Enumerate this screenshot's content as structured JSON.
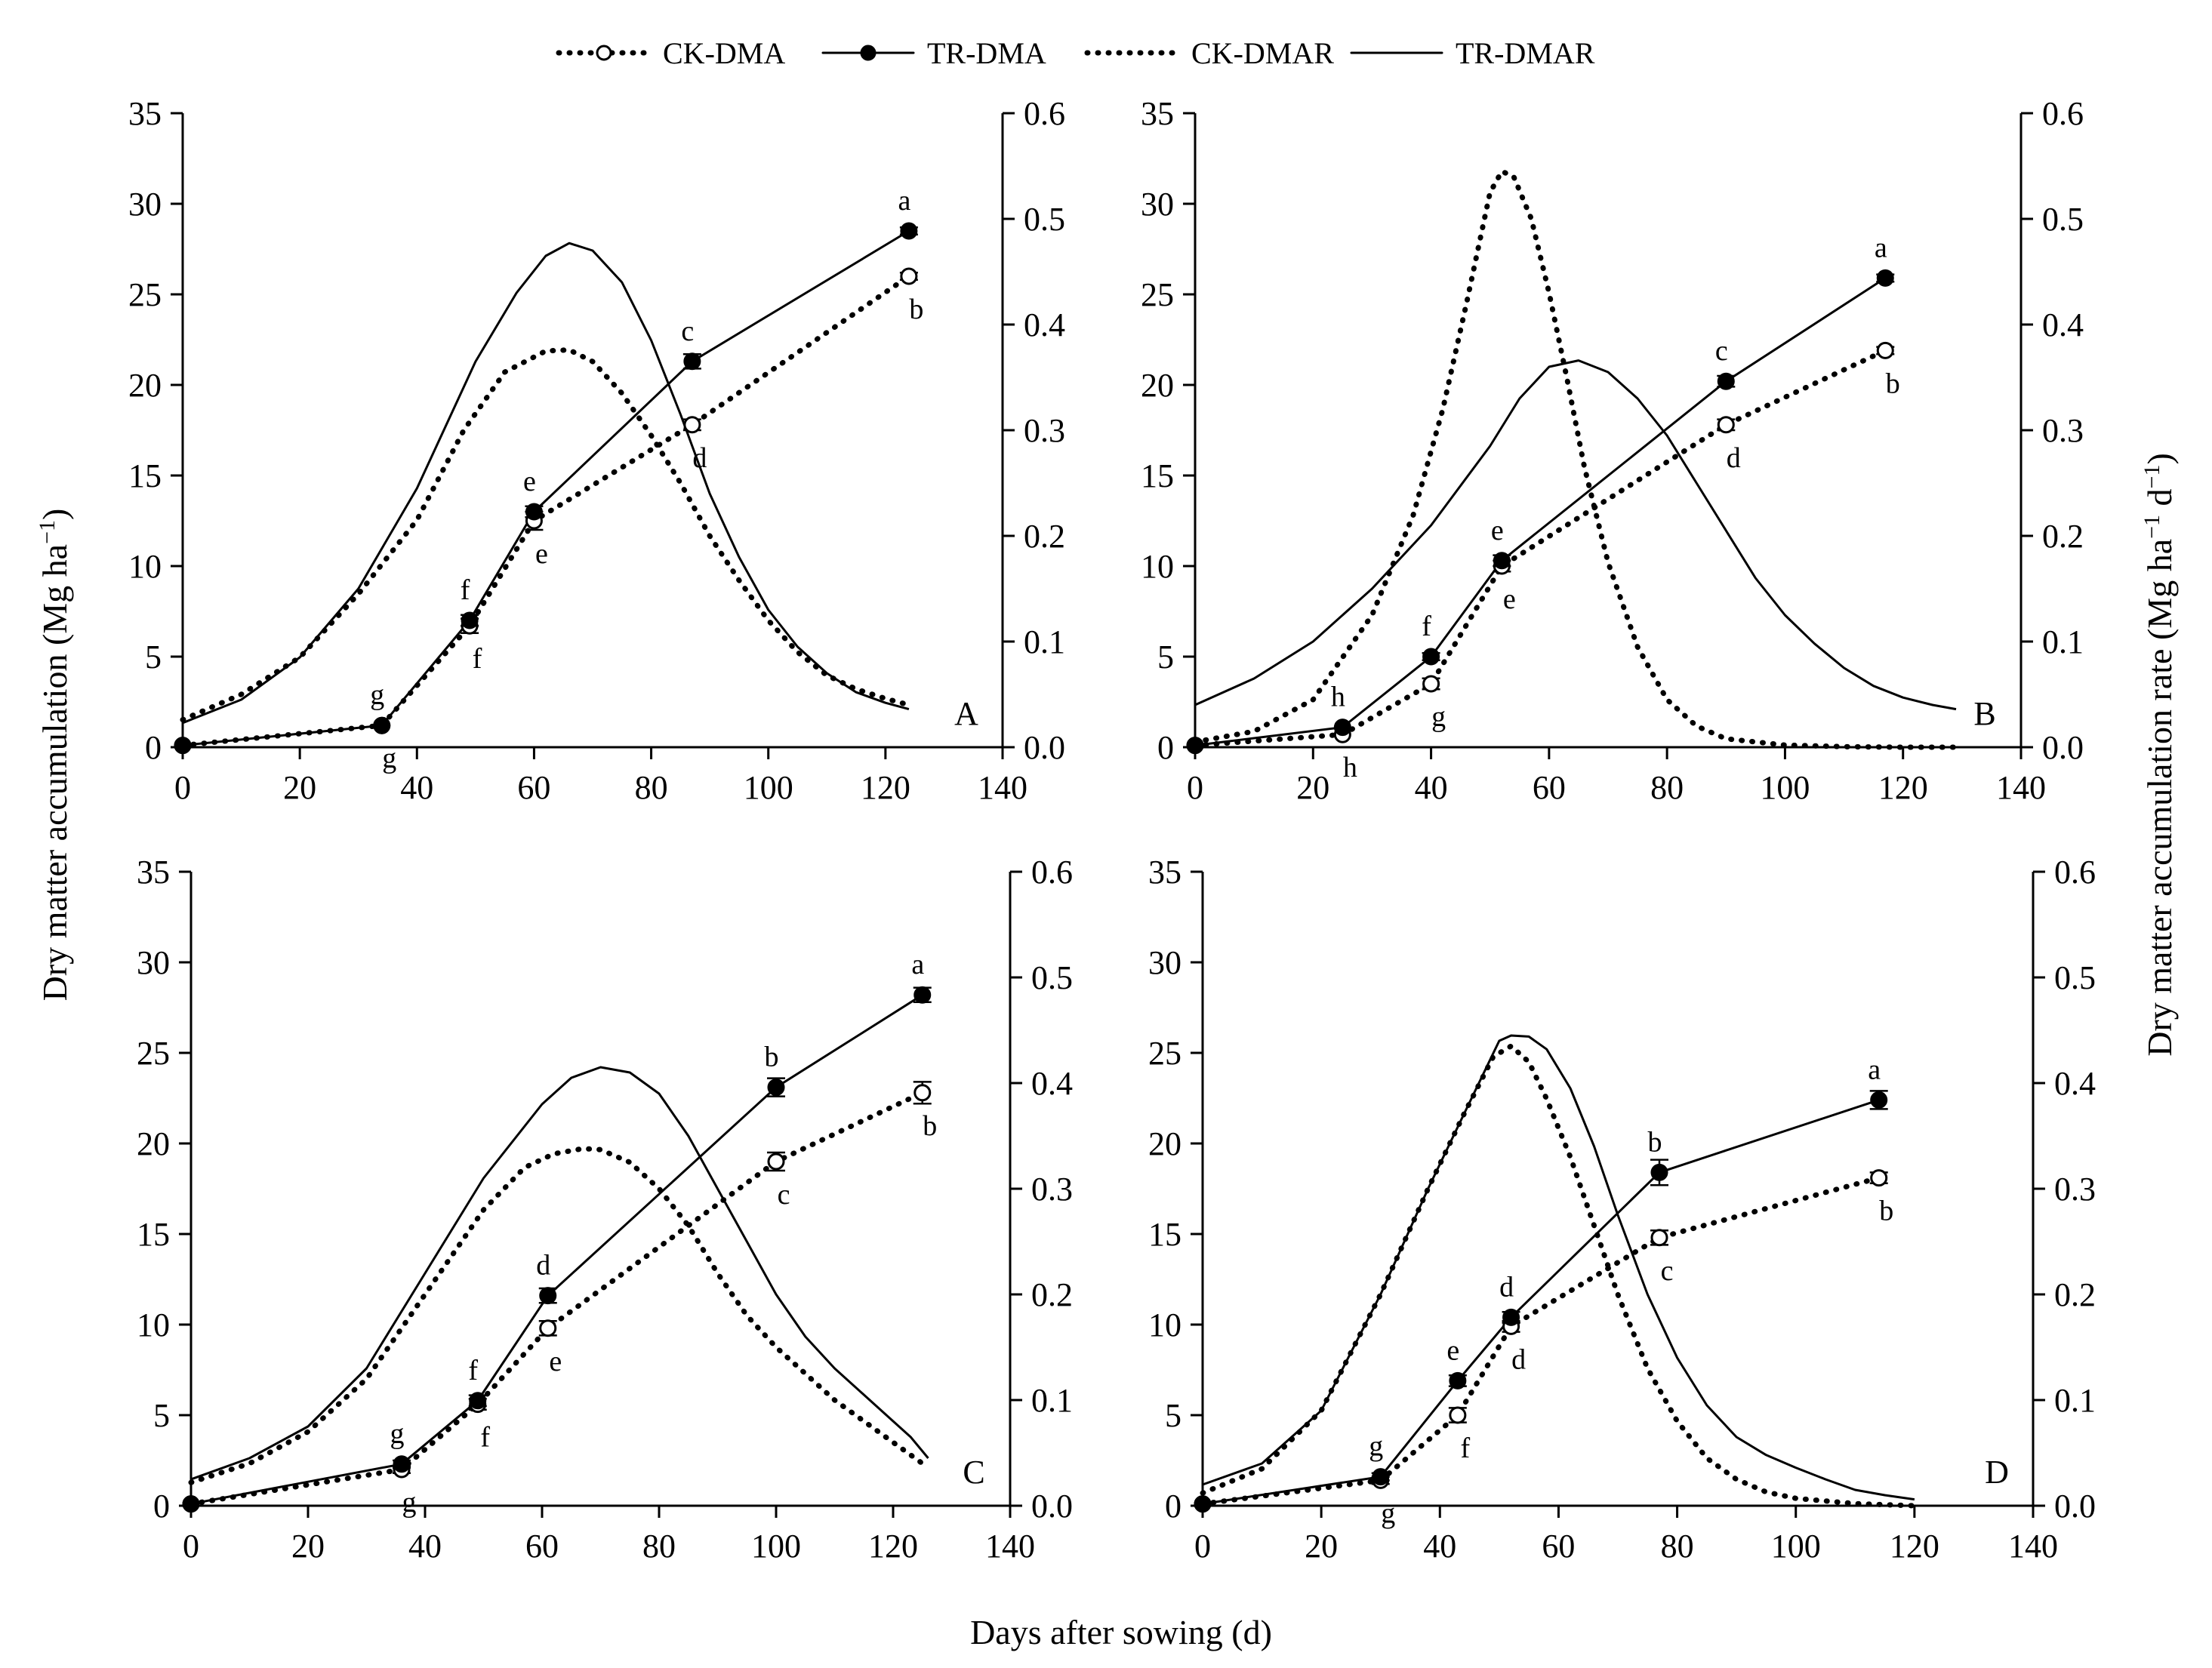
{
  "chart_data": {
    "type": "line",
    "xlabel": "Days after sowing (d)",
    "ylabel_left": "Dry matter accumulation (Mg ha",
    "ylabel_left_sup": "−1",
    "ylabel_left_tail": ")",
    "ylabel_right": "Dry matter accumulation rate (Mg ha",
    "ylabel_right_sup1": "−1",
    "ylabel_right_mid": " d",
    "ylabel_right_sup2": "−1",
    "ylabel_right_tail": ")",
    "legend": [
      {
        "label": "CK-DMA",
        "style": "dotted-open"
      },
      {
        "label": "TR-DMA",
        "style": "solid-filled"
      },
      {
        "label": "CK-DMAR",
        "style": "dotted"
      },
      {
        "label": "TR-DMAR",
        "style": "solid"
      }
    ],
    "xlim": [
      0,
      140
    ],
    "ylim_left": [
      0,
      35
    ],
    "ylim_right": [
      0,
      0.6
    ],
    "xticks": [
      0,
      20,
      40,
      60,
      80,
      100,
      120,
      140
    ],
    "yticks_left": [
      0,
      5,
      10,
      15,
      20,
      25,
      30,
      35
    ],
    "yticks_right": [
      "0.0",
      "0.1",
      "0.2",
      "0.3",
      "0.4",
      "0.5",
      "0.6"
    ],
    "panels": [
      {
        "id": "A",
        "letter": "A",
        "ck_dma": [
          {
            "x": 0,
            "y": 0.1,
            "err": 0.1,
            "label": ""
          },
          {
            "x": 34,
            "y": 1.2,
            "err": 0.15,
            "label": "g"
          },
          {
            "x": 49,
            "y": 6.7,
            "err": 0.4,
            "label": "f"
          },
          {
            "x": 60,
            "y": 12.5,
            "err": 0.5,
            "label": "e"
          },
          {
            "x": 87,
            "y": 17.8,
            "err": 0.3,
            "label": "d"
          },
          {
            "x": 124,
            "y": 26.0,
            "err": 0.2,
            "label": "b"
          }
        ],
        "tr_dma": [
          {
            "x": 0,
            "y": 0.1,
            "err": 0.1,
            "label": ""
          },
          {
            "x": 34,
            "y": 1.2,
            "err": 0.15,
            "label": "g"
          },
          {
            "x": 49,
            "y": 7.0,
            "err": 0.3,
            "label": "f"
          },
          {
            "x": 60,
            "y": 13.0,
            "err": 0.3,
            "label": "e"
          },
          {
            "x": 87,
            "y": 21.3,
            "err": 0.4,
            "label": "c"
          },
          {
            "x": 124,
            "y": 28.5,
            "err": 0.2,
            "label": "a"
          }
        ],
        "ck_dmar": [
          [
            0,
            0.026
          ],
          [
            10,
            0.05
          ],
          [
            20,
            0.085
          ],
          [
            30,
            0.145
          ],
          [
            40,
            0.215
          ],
          [
            48,
            0.3
          ],
          [
            55,
            0.355
          ],
          [
            62,
            0.375
          ],
          [
            66,
            0.376
          ],
          [
            70,
            0.365
          ],
          [
            75,
            0.335
          ],
          [
            80,
            0.295
          ],
          [
            85,
            0.25
          ],
          [
            90,
            0.2
          ],
          [
            95,
            0.158
          ],
          [
            100,
            0.12
          ],
          [
            105,
            0.09
          ],
          [
            110,
            0.068
          ],
          [
            115,
            0.055
          ],
          [
            120,
            0.046
          ],
          [
            124,
            0.04
          ]
        ],
        "tr_dmar": [
          [
            0,
            0.023
          ],
          [
            10,
            0.045
          ],
          [
            20,
            0.085
          ],
          [
            30,
            0.15
          ],
          [
            40,
            0.245
          ],
          [
            50,
            0.365
          ],
          [
            57,
            0.43
          ],
          [
            62,
            0.465
          ],
          [
            66,
            0.477
          ],
          [
            70,
            0.47
          ],
          [
            75,
            0.44
          ],
          [
            80,
            0.385
          ],
          [
            85,
            0.315
          ],
          [
            90,
            0.24
          ],
          [
            95,
            0.18
          ],
          [
            100,
            0.13
          ],
          [
            105,
            0.095
          ],
          [
            110,
            0.07
          ],
          [
            115,
            0.052
          ],
          [
            120,
            0.042
          ],
          [
            124,
            0.036
          ]
        ]
      },
      {
        "id": "B",
        "letter": "B",
        "ck_dma": [
          {
            "x": 0,
            "y": 0.1,
            "err": 0.1,
            "label": ""
          },
          {
            "x": 25,
            "y": 0.7,
            "err": 0.1,
            "label": "h"
          },
          {
            "x": 40,
            "y": 3.5,
            "err": 0.3,
            "label": "g"
          },
          {
            "x": 52,
            "y": 10.0,
            "err": 0.3,
            "label": "e"
          },
          {
            "x": 90,
            "y": 17.8,
            "err": 0.3,
            "label": "d"
          },
          {
            "x": 117,
            "y": 21.9,
            "err": 0.2,
            "label": "b"
          }
        ],
        "tr_dma": [
          {
            "x": 0,
            "y": 0.1,
            "err": 0.1,
            "label": ""
          },
          {
            "x": 25,
            "y": 1.1,
            "err": 0.1,
            "label": "h"
          },
          {
            "x": 40,
            "y": 5.0,
            "err": 0.2,
            "label": "f"
          },
          {
            "x": 52,
            "y": 10.3,
            "err": 0.3,
            "label": "e"
          },
          {
            "x": 90,
            "y": 20.2,
            "err": 0.3,
            "label": "c"
          },
          {
            "x": 117,
            "y": 25.9,
            "err": 0.2,
            "label": "a"
          }
        ],
        "ck_dmar": [
          [
            0,
            0.005
          ],
          [
            10,
            0.015
          ],
          [
            20,
            0.045
          ],
          [
            30,
            0.125
          ],
          [
            37,
            0.22
          ],
          [
            42,
            0.32
          ],
          [
            46,
            0.42
          ],
          [
            50,
            0.525
          ],
          [
            52,
            0.545
          ],
          [
            54,
            0.54
          ],
          [
            57,
            0.5
          ],
          [
            60,
            0.43
          ],
          [
            63,
            0.35
          ],
          [
            66,
            0.265
          ],
          [
            70,
            0.175
          ],
          [
            75,
            0.095
          ],
          [
            80,
            0.045
          ],
          [
            85,
            0.02
          ],
          [
            90,
            0.008
          ],
          [
            100,
            0.002
          ],
          [
            110,
            0.0005
          ],
          [
            120,
            0.0
          ],
          [
            129,
            0.0
          ]
        ],
        "tr_dmar": [
          [
            0,
            0.04
          ],
          [
            10,
            0.065
          ],
          [
            20,
            0.1
          ],
          [
            30,
            0.15
          ],
          [
            40,
            0.21
          ],
          [
            50,
            0.285
          ],
          [
            55,
            0.33
          ],
          [
            60,
            0.36
          ],
          [
            65,
            0.366
          ],
          [
            70,
            0.355
          ],
          [
            75,
            0.33
          ],
          [
            80,
            0.295
          ],
          [
            85,
            0.25
          ],
          [
            90,
            0.205
          ],
          [
            95,
            0.16
          ],
          [
            100,
            0.125
          ],
          [
            105,
            0.098
          ],
          [
            110,
            0.075
          ],
          [
            115,
            0.058
          ],
          [
            120,
            0.047
          ],
          [
            125,
            0.04
          ],
          [
            129,
            0.036
          ]
        ]
      },
      {
        "id": "C",
        "letter": "C",
        "ck_dma": [
          {
            "x": 0,
            "y": 0.1,
            "err": 0.1,
            "label": ""
          },
          {
            "x": 36,
            "y": 2.0,
            "err": 0.2,
            "label": "g"
          },
          {
            "x": 49,
            "y": 5.6,
            "err": 0.3,
            "label": "f"
          },
          {
            "x": 61,
            "y": 9.8,
            "err": 0.4,
            "label": "e"
          },
          {
            "x": 100,
            "y": 19.0,
            "err": 0.5,
            "label": "c"
          },
          {
            "x": 125,
            "y": 22.8,
            "err": 0.6,
            "label": "b"
          }
        ],
        "tr_dma": [
          {
            "x": 0,
            "y": 0.1,
            "err": 0.1,
            "label": ""
          },
          {
            "x": 36,
            "y": 2.3,
            "err": 0.2,
            "label": "g"
          },
          {
            "x": 49,
            "y": 5.8,
            "err": 0.3,
            "label": "f"
          },
          {
            "x": 61,
            "y": 11.6,
            "err": 0.4,
            "label": "d"
          },
          {
            "x": 100,
            "y": 23.1,
            "err": 0.5,
            "label": "b"
          },
          {
            "x": 125,
            "y": 28.2,
            "err": 0.4,
            "label": "a"
          }
        ],
        "ck_dmar": [
          [
            0,
            0.022
          ],
          [
            10,
            0.04
          ],
          [
            20,
            0.07
          ],
          [
            30,
            0.12
          ],
          [
            40,
            0.2
          ],
          [
            50,
            0.28
          ],
          [
            57,
            0.32
          ],
          [
            62,
            0.333
          ],
          [
            67,
            0.338
          ],
          [
            70,
            0.337
          ],
          [
            75,
            0.325
          ],
          [
            80,
            0.3
          ],
          [
            85,
            0.265
          ],
          [
            90,
            0.22
          ],
          [
            95,
            0.18
          ],
          [
            100,
            0.15
          ],
          [
            105,
            0.125
          ],
          [
            110,
            0.1
          ],
          [
            115,
            0.08
          ],
          [
            120,
            0.06
          ],
          [
            125,
            0.04
          ]
        ],
        "tr_dmar": [
          [
            0,
            0.025
          ],
          [
            10,
            0.045
          ],
          [
            20,
            0.075
          ],
          [
            30,
            0.13
          ],
          [
            40,
            0.22
          ],
          [
            50,
            0.31
          ],
          [
            60,
            0.38
          ],
          [
            65,
            0.405
          ],
          [
            70,
            0.415
          ],
          [
            75,
            0.41
          ],
          [
            80,
            0.39
          ],
          [
            85,
            0.35
          ],
          [
            90,
            0.3
          ],
          [
            95,
            0.25
          ],
          [
            100,
            0.2
          ],
          [
            105,
            0.16
          ],
          [
            110,
            0.13
          ],
          [
            115,
            0.105
          ],
          [
            120,
            0.08
          ],
          [
            123,
            0.065
          ],
          [
            126,
            0.045
          ]
        ]
      },
      {
        "id": "D",
        "letter": "D",
        "ck_dma": [
          {
            "x": 0,
            "y": 0.1,
            "err": 0.1,
            "label": ""
          },
          {
            "x": 30,
            "y": 1.4,
            "err": 0.2,
            "label": "g"
          },
          {
            "x": 43,
            "y": 5.0,
            "err": 0.4,
            "label": "f"
          },
          {
            "x": 52,
            "y": 9.9,
            "err": 0.3,
            "label": "d"
          },
          {
            "x": 77,
            "y": 14.8,
            "err": 0.4,
            "label": "c"
          },
          {
            "x": 114,
            "y": 18.1,
            "err": 0.3,
            "label": "b"
          }
        ],
        "tr_dma": [
          {
            "x": 0,
            "y": 0.1,
            "err": 0.1,
            "label": ""
          },
          {
            "x": 30,
            "y": 1.6,
            "err": 0.2,
            "label": "g"
          },
          {
            "x": 43,
            "y": 6.9,
            "err": 0.3,
            "label": "e"
          },
          {
            "x": 52,
            "y": 10.4,
            "err": 0.3,
            "label": "d"
          },
          {
            "x": 77,
            "y": 18.4,
            "err": 0.7,
            "label": "b"
          },
          {
            "x": 114,
            "y": 22.4,
            "err": 0.5,
            "label": "a"
          }
        ],
        "ck_dmar": [
          [
            0,
            0.012
          ],
          [
            10,
            0.035
          ],
          [
            20,
            0.09
          ],
          [
            30,
            0.2
          ],
          [
            38,
            0.3
          ],
          [
            44,
            0.37
          ],
          [
            49,
            0.425
          ],
          [
            52,
            0.435
          ],
          [
            55,
            0.42
          ],
          [
            58,
            0.385
          ],
          [
            62,
            0.33
          ],
          [
            66,
            0.265
          ],
          [
            70,
            0.2
          ],
          [
            75,
            0.13
          ],
          [
            80,
            0.08
          ],
          [
            85,
            0.045
          ],
          [
            90,
            0.025
          ],
          [
            95,
            0.013
          ],
          [
            100,
            0.007
          ],
          [
            110,
            0.002
          ],
          [
            120,
            0.0
          ]
        ],
        "tr_dmar": [
          [
            0,
            0.02
          ],
          [
            10,
            0.04
          ],
          [
            20,
            0.09
          ],
          [
            30,
            0.2
          ],
          [
            38,
            0.3
          ],
          [
            44,
            0.37
          ],
          [
            50,
            0.44
          ],
          [
            52,
            0.445
          ],
          [
            55,
            0.444
          ],
          [
            58,
            0.432
          ],
          [
            62,
            0.395
          ],
          [
            66,
            0.34
          ],
          [
            70,
            0.275
          ],
          [
            75,
            0.2
          ],
          [
            80,
            0.14
          ],
          [
            85,
            0.095
          ],
          [
            90,
            0.065
          ],
          [
            95,
            0.048
          ],
          [
            100,
            0.036
          ],
          [
            105,
            0.025
          ],
          [
            110,
            0.015
          ],
          [
            115,
            0.01
          ],
          [
            120,
            0.006
          ]
        ]
      }
    ]
  }
}
